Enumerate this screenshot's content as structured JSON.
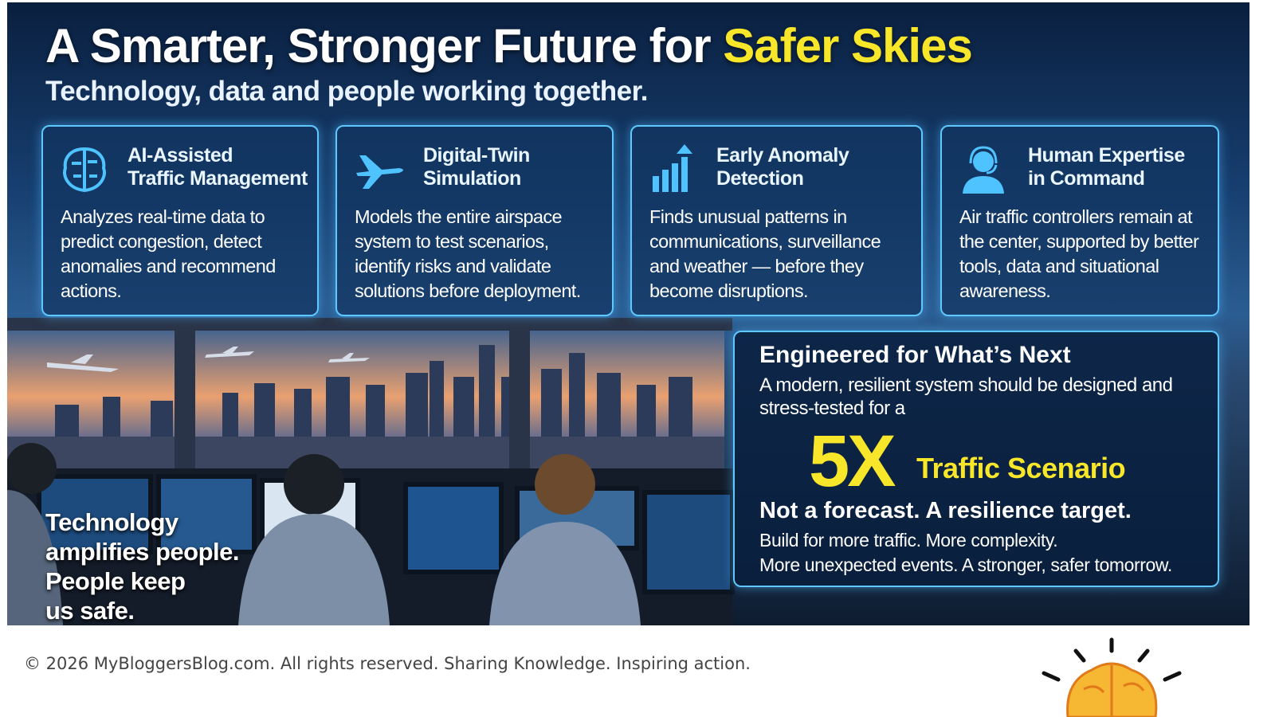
{
  "header": {
    "title": "A Smarter, Stronger Future for",
    "title_highlight": "Safer Skies",
    "subtitle": "Technology, data and people working together."
  },
  "cards": [
    {
      "title_lines": [
        "AI-Assisted",
        "Traffic Management"
      ],
      "body": "Analyzes real-time data to predict congestion, detect anomalies and recommend actions."
    },
    {
      "title_lines": [
        "Digital-Twin",
        "Simulation"
      ],
      "body": "Models the entire airspace system to test scenarios, identify risks and validate solutions before deployment."
    },
    {
      "title_lines": [
        "Early Anomaly",
        "Detection"
      ],
      "body": "Finds unusual patterns in communications, surveillance and weather — before they become disruptions."
    },
    {
      "title_lines": [
        "Human Expertise",
        "in Command"
      ],
      "body": "Air traffic controllers remain at the center, supported by better tools, data and situational awareness."
    }
  ],
  "callout": {
    "heading": "Engineered for What’s Next",
    "intro": "A modern, resilient system should be designed and stress-tested for a",
    "big": "5X",
    "big_label": "Traffic Scenario",
    "tagline": "Not a forecast. A resilience target.",
    "lines": [
      "Build for more traffic. More complexity.",
      "More unexpected events. A stronger, safer tomorrow."
    ]
  },
  "photo_caption_lines": [
    "Technology",
    "amplifies people.",
    "People keep",
    "us safe."
  ],
  "footer": {
    "copyright": "© 2026 MyBloggersBlog.com. All rights reserved. Sharing Knowledge. Inspiring action."
  }
}
